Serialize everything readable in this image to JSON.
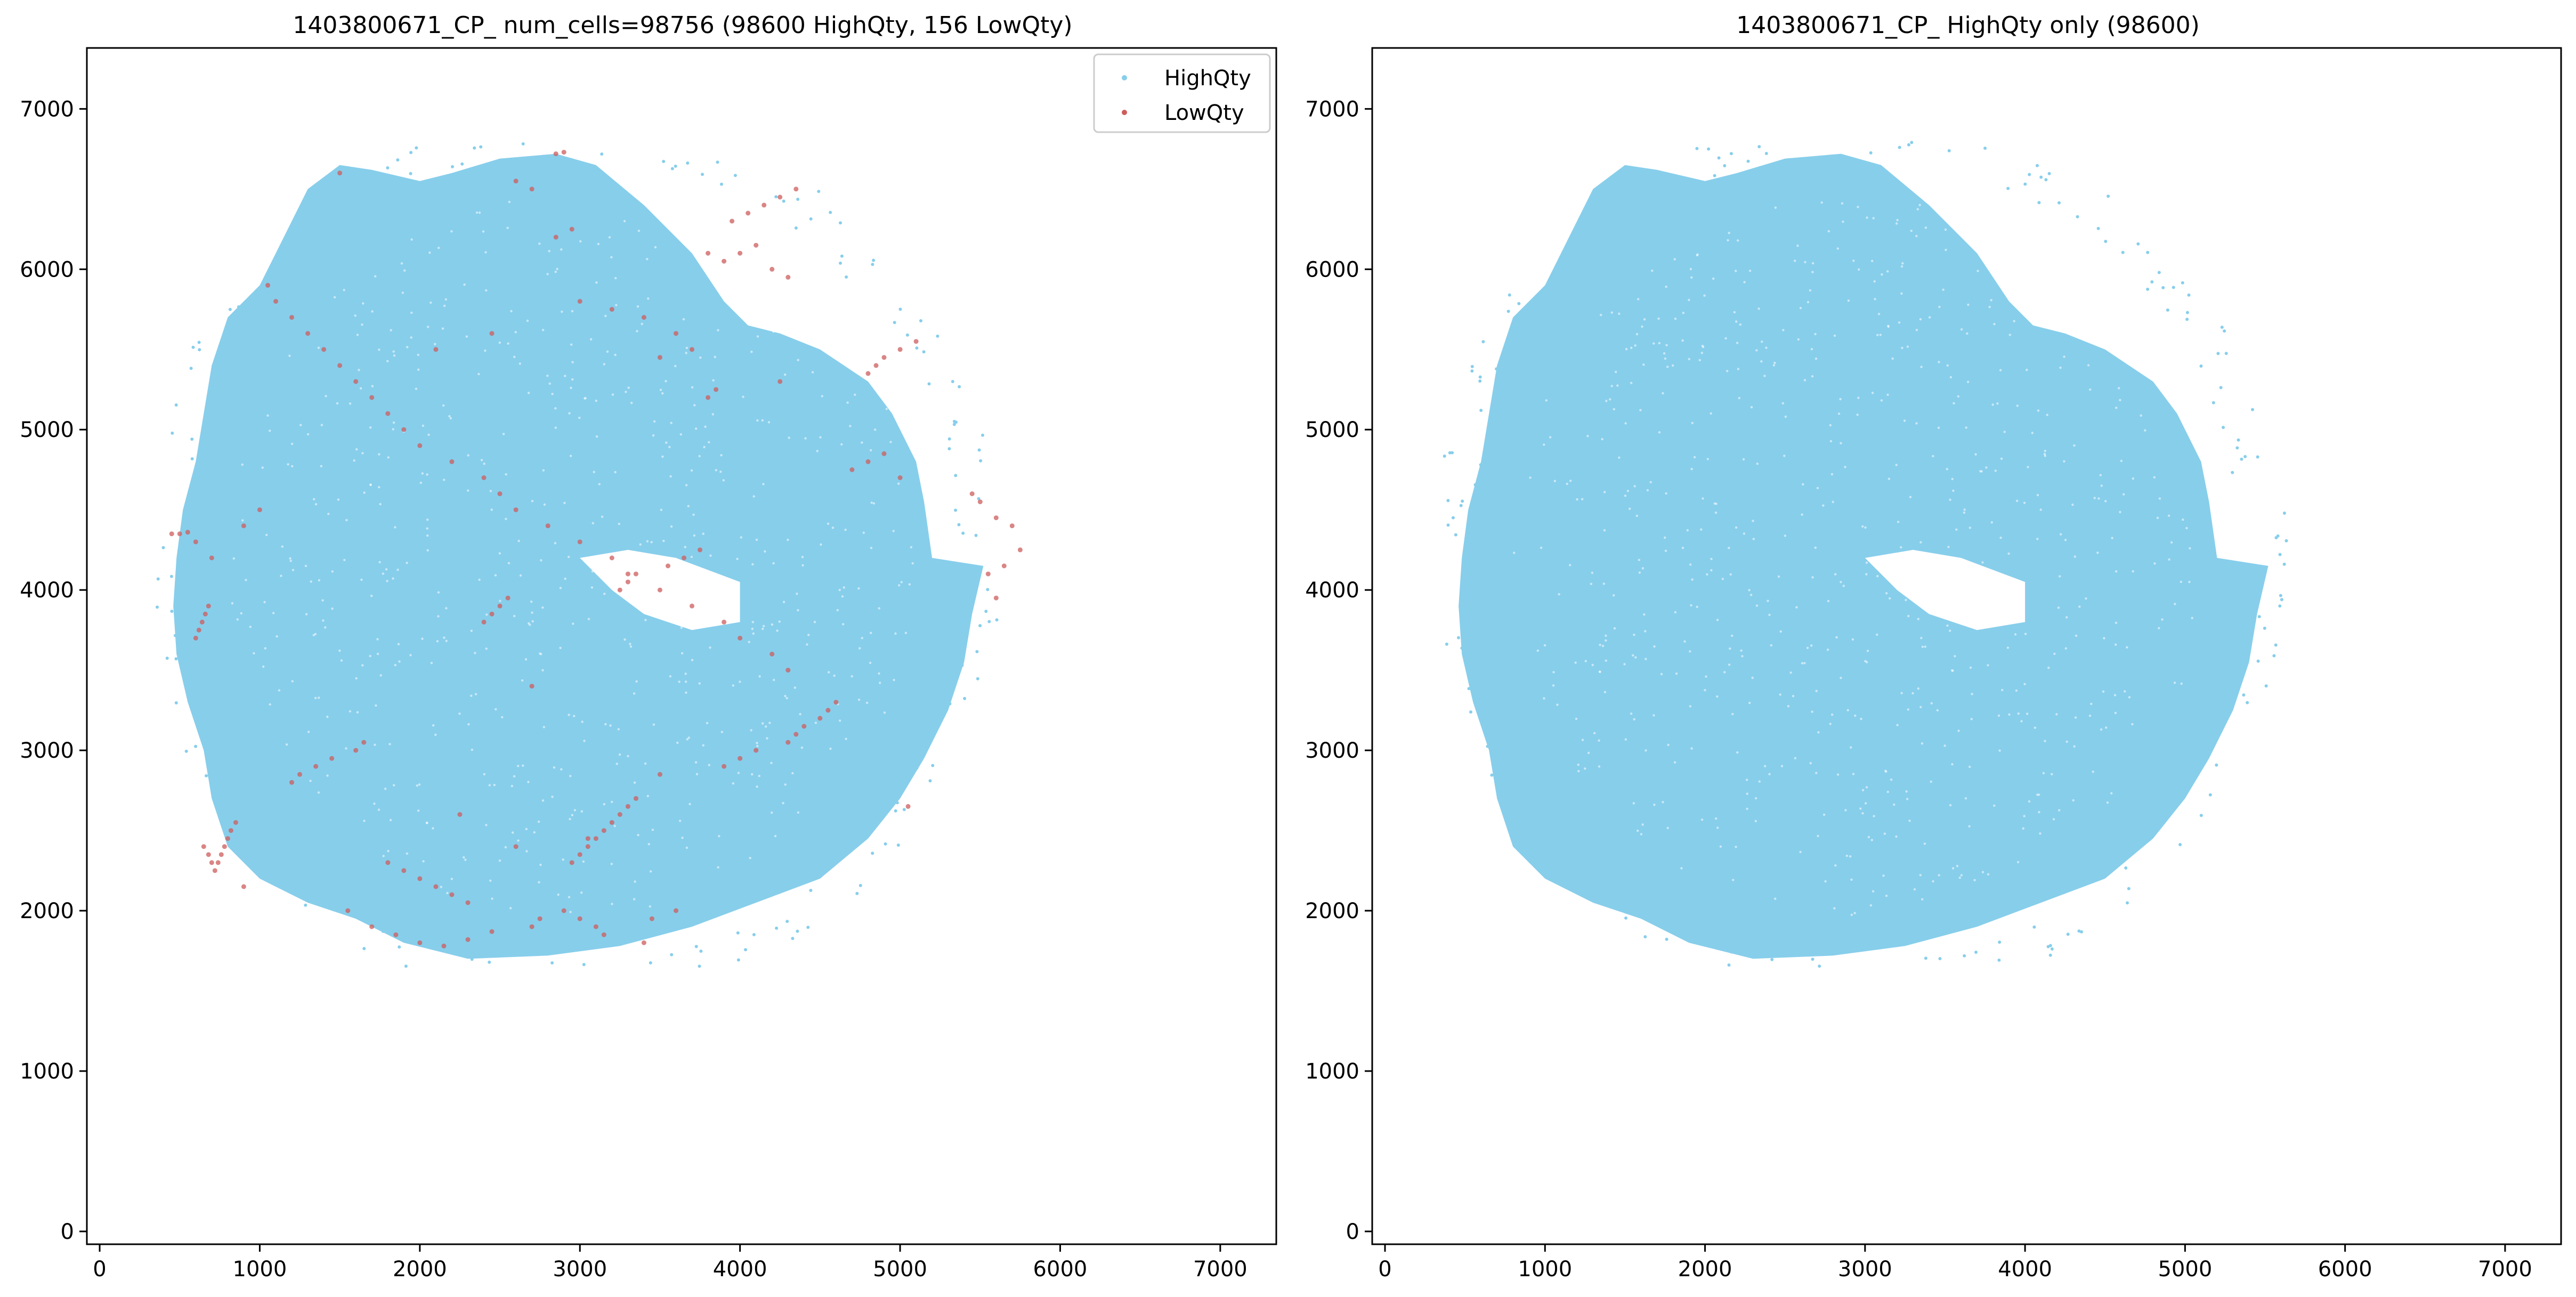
{
  "chart_data": [
    {
      "type": "scatter",
      "title": "1403800671_CP_ num_cells=98756 (98600 HighQty, 156 LowQty)",
      "xlabel": "",
      "ylabel": "",
      "xlim": [
        -80,
        7350
      ],
      "ylim": [
        -80,
        7380
      ],
      "xticks": [
        0,
        1000,
        2000,
        3000,
        4000,
        5000,
        6000,
        7000
      ],
      "yticks": [
        0,
        1000,
        2000,
        3000,
        4000,
        5000,
        6000,
        7000
      ],
      "grid": false,
      "legend": {
        "position": "top-right",
        "entries": [
          {
            "label": "HighQty",
            "color": "#87ceeb"
          },
          {
            "label": "LowQty",
            "color": "#cd5c5c"
          }
        ]
      },
      "series": [
        {
          "name": "HighQty",
          "color": "#87ceeb",
          "count": 98600,
          "region": "tissue section spanning approx. x 400–5750, y 1700–6750",
          "outline": [
            [
              2300,
              1700
            ],
            [
              2800,
              1720
            ],
            [
              3250,
              1780
            ],
            [
              3700,
              1900
            ],
            [
              4100,
              2050
            ],
            [
              4500,
              2200
            ],
            [
              4800,
              2450
            ],
            [
              5000,
              2700
            ],
            [
              5150,
              2950
            ],
            [
              5300,
              3250
            ],
            [
              5400,
              3550
            ],
            [
              5450,
              3850
            ],
            [
              5520,
              4150
            ],
            [
              5200,
              4200
            ],
            [
              5150,
              4550
            ],
            [
              5100,
              4800
            ],
            [
              4950,
              5100
            ],
            [
              4800,
              5300
            ],
            [
              4500,
              5500
            ],
            [
              4250,
              5600
            ],
            [
              4050,
              5650
            ],
            [
              3900,
              5800
            ],
            [
              3700,
              6100
            ],
            [
              3400,
              6400
            ],
            [
              3100,
              6650
            ],
            [
              2850,
              6720
            ],
            [
              2500,
              6690
            ],
            [
              2200,
              6600
            ],
            [
              2000,
              6550
            ],
            [
              1700,
              6620
            ],
            [
              1500,
              6650
            ],
            [
              1300,
              6500
            ],
            [
              1200,
              6300
            ],
            [
              1100,
              6100
            ],
            [
              1000,
              5900
            ],
            [
              800,
              5700
            ],
            [
              700,
              5400
            ],
            [
              650,
              5100
            ],
            [
              600,
              4800
            ],
            [
              520,
              4500
            ],
            [
              480,
              4200
            ],
            [
              460,
              3900
            ],
            [
              480,
              3600
            ],
            [
              550,
              3300
            ],
            [
              650,
              3000
            ],
            [
              700,
              2700
            ],
            [
              800,
              2400
            ],
            [
              1000,
              2200
            ],
            [
              1300,
              2050
            ],
            [
              1600,
              1950
            ],
            [
              1900,
              1800
            ]
          ],
          "hole": [
            [
              3000,
              4200
            ],
            [
              3300,
              4250
            ],
            [
              3600,
              4200
            ],
            [
              4000,
              4050
            ],
            [
              4000,
              3800
            ],
            [
              3700,
              3750
            ],
            [
              3400,
              3850
            ],
            [
              3200,
              4000
            ]
          ]
        },
        {
          "name": "LowQty",
          "color": "#cd5c5c",
          "count": 156,
          "x": [
            2850,
            2900,
            1500,
            2600,
            2700,
            2100,
            2450,
            3000,
            3200,
            3400,
            3600,
            3800,
            3900,
            4000,
            4100,
            4200,
            4300,
            3500,
            3700,
            4700,
            4800,
            4900,
            5000,
            5450,
            5500,
            5600,
            5700,
            5750,
            5650,
            5550,
            5600,
            450,
            500,
            550,
            600,
            700,
            900,
            1000,
            1050,
            1100,
            1200,
            1300,
            1400,
            1500,
            1600,
            1700,
            1800,
            1900,
            2000,
            2200,
            2400,
            2500,
            2600,
            2800,
            3000,
            3200,
            3300,
            3500,
            3700,
            3900,
            4000,
            4200,
            4300,
            5050,
            650,
            680,
            700,
            720,
            740,
            760,
            780,
            800,
            820,
            850,
            900,
            1800,
            1900,
            2000,
            2100,
            2200,
            2300,
            2900,
            3000,
            3100,
            3150,
            3400,
            3450,
            3600,
            2250,
            2600,
            1550,
            1700,
            1850,
            2000,
            2150,
            2300,
            2450,
            2700,
            2750,
            3050,
            3500,
            3900,
            4000,
            4100,
            4300,
            4350,
            4400,
            4500,
            4550,
            4600,
            2400,
            2450,
            2500,
            2550,
            3250,
            3300,
            3350,
            3550,
            3650,
            3750,
            1200,
            1250,
            1350,
            1450,
            1600,
            1650,
            2950,
            3000,
            3050,
            3100,
            3150,
            3200,
            3250,
            3300,
            3350,
            2700,
            3800,
            3850,
            4250,
            4800,
            4850,
            4900,
            5000,
            5100,
            600,
            620,
            640,
            660,
            680,
            2850,
            2950,
            3950,
            4050,
            4150,
            4250,
            4350
          ],
          "y": [
            6720,
            6730,
            6600,
            6550,
            6500,
            5500,
            5600,
            5800,
            5750,
            5700,
            5600,
            6100,
            6050,
            6100,
            6150,
            6000,
            5950,
            5450,
            5500,
            4750,
            4800,
            4850,
            4700,
            4600,
            4550,
            4450,
            4400,
            4250,
            4150,
            4100,
            3950,
            4350,
            4350,
            4360,
            4300,
            4200,
            4400,
            4500,
            5900,
            5800,
            5700,
            5600,
            5500,
            5400,
            5300,
            5200,
            5100,
            5000,
            4900,
            4800,
            4700,
            4600,
            4500,
            4400,
            4300,
            4200,
            4100,
            4000,
            3900,
            3800,
            3700,
            3600,
            3500,
            2650,
            2400,
            2350,
            2300,
            2250,
            2300,
            2350,
            2400,
            2450,
            2500,
            2550,
            2150,
            2300,
            2250,
            2200,
            2150,
            2100,
            2050,
            2000,
            1950,
            1900,
            1850,
            1800,
            1950,
            2000,
            2600,
            2400,
            2000,
            1900,
            1850,
            1800,
            1780,
            1820,
            1870,
            1900,
            1950,
            2450,
            2850,
            2900,
            2950,
            3000,
            3050,
            3100,
            3150,
            3200,
            3250,
            3300,
            3800,
            3850,
            3900,
            3950,
            4000,
            4050,
            4100,
            4150,
            4200,
            4250,
            2800,
            2850,
            2900,
            2950,
            3000,
            3050,
            2300,
            2350,
            2400,
            2450,
            2500,
            2550,
            2600,
            2650,
            2700,
            3400,
            5200,
            5250,
            5300,
            5350,
            5400,
            5450,
            5500,
            5550,
            3700,
            3750,
            3800,
            3850,
            3900,
            6200,
            6250,
            6300,
            6350,
            6400,
            6450,
            6500
          ]
        }
      ]
    },
    {
      "type": "scatter",
      "title": "1403800671_CP_ HighQty only (98600)",
      "xlabel": "",
      "ylabel": "",
      "xlim": [
        -80,
        7350
      ],
      "ylim": [
        -80,
        7380
      ],
      "xticks": [
        0,
        1000,
        2000,
        3000,
        4000,
        5000,
        6000,
        7000
      ],
      "yticks": [
        0,
        1000,
        2000,
        3000,
        4000,
        5000,
        6000,
        7000
      ],
      "grid": false,
      "series": [
        {
          "name": "HighQty",
          "color": "#87ceeb",
          "count": 98600,
          "region": "same tissue section as left panel, LowQty cells removed"
        }
      ]
    }
  ]
}
